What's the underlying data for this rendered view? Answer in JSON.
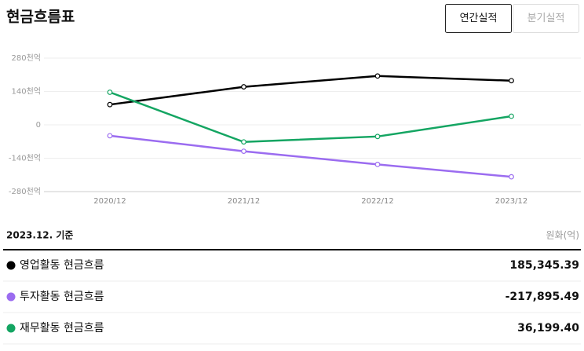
{
  "header": {
    "title": "현금흐름표",
    "tabs": [
      "연간실적",
      "분기실적"
    ]
  },
  "chart_data": {
    "type": "line",
    "categories": [
      "2020/12",
      "2021/12",
      "2022/12",
      "2023/12"
    ],
    "series": [
      {
        "name": "영업활동 현금흐름",
        "color": "#000000",
        "values": [
          85,
          159.5,
          205,
          185.35
        ]
      },
      {
        "name": "투자활동 현금흐름",
        "color": "#9b6cf0",
        "values": [
          -45.6,
          -110.7,
          -166,
          -217.9
        ]
      },
      {
        "name": "재무활동 현금흐름",
        "color": "#14a562",
        "values": [
          136.7,
          -71.6,
          -48.8,
          36.2
        ]
      }
    ],
    "ylim": [
      -280,
      280
    ],
    "yticks": [
      {
        "value": -280,
        "label": "-280천억"
      },
      {
        "value": -140,
        "label": "-140천억"
      },
      0,
      {
        "value": 140,
        "label": "140천억"
      },
      {
        "value": 280,
        "label": "280천억"
      }
    ],
    "grid": true
  },
  "table": {
    "date": "2023.12. 기준",
    "unit": "원화(억)",
    "values": [
      "185,345.39",
      "-217,895.49",
      "36,199.40"
    ]
  }
}
